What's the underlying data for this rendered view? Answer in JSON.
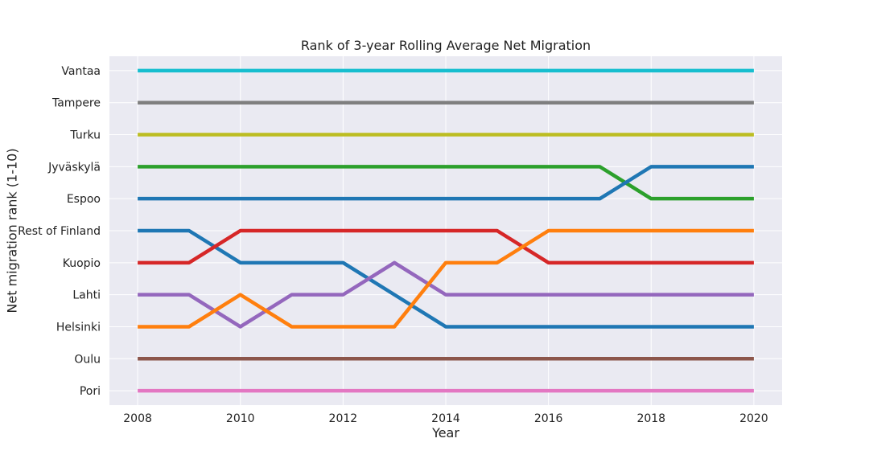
{
  "chart_data": {
    "type": "line",
    "title": "Rank of 3-year Rolling Average Net Migration",
    "xlabel": "Year",
    "ylabel": "Net migration rank (1-10)",
    "x": [
      2008,
      2009,
      2010,
      2011,
      2012,
      2013,
      2014,
      2015,
      2016,
      2017,
      2018,
      2019,
      2020
    ],
    "xlim": [
      2007.45,
      2020.55
    ],
    "ylim": [
      -0.45,
      10.45
    ],
    "xticks": [
      2008,
      2010,
      2012,
      2014,
      2016,
      2018,
      2020
    ],
    "y_tick_labels": [
      "Pori",
      "Oulu",
      "Helsinki",
      "Lahti",
      "Kuopio",
      "Rest of Finland",
      "Espoo",
      "Jyväskylä",
      "Turku",
      "Tampere",
      "Vantaa"
    ],
    "grid": true,
    "legend": "none",
    "background": "#eaeaf2",
    "series": [
      {
        "label": "Vantaa",
        "color": "#17becf",
        "values": [
          10,
          10,
          10,
          10,
          10,
          10,
          10,
          10,
          10,
          10,
          10,
          10,
          10
        ]
      },
      {
        "label": "Tampere",
        "color": "#7f7f7f",
        "values": [
          9,
          9,
          9,
          9,
          9,
          9,
          9,
          9,
          9,
          9,
          9,
          9,
          9
        ]
      },
      {
        "label": "Turku",
        "color": "#bcbd22",
        "values": [
          8,
          8,
          8,
          8,
          8,
          8,
          8,
          8,
          8,
          8,
          8,
          8,
          8
        ]
      },
      {
        "label": "Jyväskylä",
        "color": "#2ca02c",
        "values": [
          7,
          7,
          7,
          7,
          7,
          7,
          7,
          7,
          7,
          7,
          6,
          6,
          6
        ]
      },
      {
        "label": "Espoo",
        "color": "#1f77b4",
        "values": [
          6,
          6,
          6,
          6,
          6,
          6,
          6,
          6,
          6,
          6,
          7,
          7,
          7
        ]
      },
      {
        "label": "Rest of Finland",
        "color": "#1f77b4",
        "values": [
          5,
          5,
          4,
          4,
          4,
          3,
          2,
          2,
          2,
          2,
          2,
          2,
          2
        ]
      },
      {
        "label": "Kuopio",
        "color": "#d62728",
        "values": [
          4,
          4,
          5,
          5,
          5,
          5,
          5,
          5,
          4,
          4,
          4,
          4,
          4
        ]
      },
      {
        "label": "Lahti",
        "color": "#9467bd",
        "values": [
          3,
          3,
          2,
          3,
          3,
          4,
          3,
          3,
          3,
          3,
          3,
          3,
          3
        ]
      },
      {
        "label": "Helsinki",
        "color": "#ff7f0e",
        "values": [
          2,
          2,
          3,
          2,
          2,
          2,
          4,
          4,
          5,
          5,
          5,
          5,
          5
        ]
      },
      {
        "label": "Oulu",
        "color": "#8c564b",
        "values": [
          1,
          1,
          1,
          1,
          1,
          1,
          1,
          1,
          1,
          1,
          1,
          1,
          1
        ]
      },
      {
        "label": "Pori",
        "color": "#e377c2",
        "values": [
          0,
          0,
          0,
          0,
          0,
          0,
          0,
          0,
          0,
          0,
          0,
          0,
          0
        ]
      }
    ]
  }
}
